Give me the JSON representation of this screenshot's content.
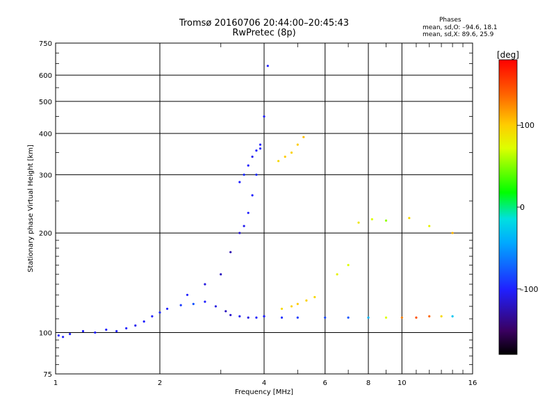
{
  "header": {
    "title": "Tromsø 20160706 20:44:00–20:45:43",
    "subtitle": "RwPretec (8p)"
  },
  "phase_panel": {
    "heading": "Phases",
    "line_o": "mean, sd,O: –94.6, 18.1",
    "line_x": "mean, sd,X:  89.6, 25.9"
  },
  "colorbar": {
    "label": "[deg]",
    "ticks": [
      "100",
      "0",
      "–100"
    ],
    "tick_values": [
      100,
      0,
      -100
    ],
    "range": [
      -180,
      180
    ]
  },
  "chart_data": {
    "type": "scatter",
    "xlabel": "Frequency [MHz]",
    "ylabel": "Stationary phase Virtual Height [km]",
    "x_scale": "log",
    "y_scale": "log",
    "xlim": [
      1,
      16
    ],
    "ylim": [
      75,
      750
    ],
    "grid": true,
    "xticks": [
      1,
      2,
      4,
      6,
      8,
      10,
      16
    ],
    "xtick_labels": [
      "1",
      "2",
      "4",
      "6",
      "8",
      "10",
      "16"
    ],
    "yticks": [
      75,
      100,
      200,
      300,
      400,
      500,
      600,
      750
    ],
    "ytick_labels": [
      "75",
      "100",
      "200",
      "300",
      "400",
      "500",
      "600",
      "750"
    ],
    "color_by": "phase",
    "series": [
      {
        "x": [
          1.02,
          1.05,
          1.1,
          1.2,
          1.3,
          1.4,
          1.5,
          1.6,
          1.7,
          1.8,
          1.9,
          2.0,
          2.1,
          2.3,
          2.5,
          2.7,
          2.9,
          3.1,
          3.2,
          3.4,
          3.6,
          3.8,
          4.0
        ],
        "y": [
          98,
          97,
          99,
          101,
          100,
          102,
          101,
          103,
          105,
          108,
          112,
          115,
          118,
          121,
          122,
          124,
          120,
          116,
          113,
          112,
          111,
          111,
          112
        ],
        "phase": [
          -100,
          -100,
          -100,
          -100,
          -100,
          -100,
          -100,
          -100,
          -105,
          -100,
          -100,
          -95,
          -100,
          -90,
          -80,
          -100,
          -110,
          -120,
          -115,
          -105,
          -110,
          -100,
          -100
        ]
      },
      {
        "x": [
          2.4,
          2.7,
          3.0,
          3.2,
          3.4,
          3.5,
          3.6,
          3.7,
          3.8,
          3.9,
          4.0,
          4.1
        ],
        "y": [
          130,
          140,
          150,
          175,
          200,
          210,
          230,
          260,
          300,
          360,
          450,
          640
        ],
        "phase": [
          -100,
          -110,
          -120,
          -125,
          -115,
          -105,
          -100,
          -100,
          -95,
          -100,
          -100,
          -100
        ]
      },
      {
        "x": [
          3.4,
          3.5,
          3.6,
          3.7,
          3.8,
          3.9
        ],
        "y": [
          285,
          300,
          320,
          340,
          355,
          370
        ],
        "phase": [
          -100,
          -95,
          -100,
          -105,
          -100,
          -100
        ]
      },
      {
        "x": [
          4.0,
          4.5,
          5,
          6,
          7,
          8,
          9,
          10,
          11,
          12,
          13,
          14
        ],
        "y": [
          112,
          111,
          111,
          111,
          111,
          111,
          111,
          111,
          111,
          112,
          112,
          112
        ],
        "phase": [
          -100,
          -95,
          -90,
          -85,
          -80,
          -40,
          60,
          130,
          150,
          140,
          90,
          -30
        ]
      },
      {
        "x": [
          4.4,
          4.6,
          4.8,
          5.0,
          5.2
        ],
        "y": [
          330,
          340,
          350,
          370,
          390
        ],
        "phase": [
          90,
          100,
          95,
          100,
          105
        ]
      },
      {
        "x": [
          4.5,
          4.8,
          5.0,
          5.3,
          5.6,
          6.5,
          7.0
        ],
        "y": [
          118,
          120,
          122,
          125,
          128,
          150,
          160
        ],
        "phase": [
          90,
          95,
          100,
          95,
          90,
          70,
          60
        ]
      },
      {
        "x": [
          7.5,
          8.2,
          9.0,
          10.5,
          12.0,
          14.0
        ],
        "y": [
          215,
          220,
          218,
          222,
          210,
          200
        ],
        "phase": [
          80,
          60,
          40,
          90,
          70,
          110
        ]
      }
    ]
  }
}
